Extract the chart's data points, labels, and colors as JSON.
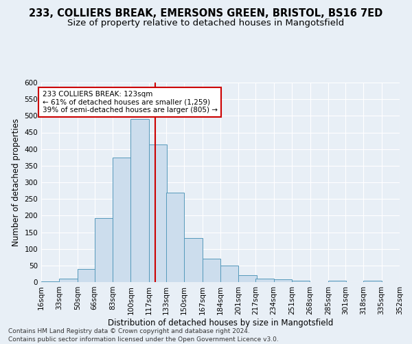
{
  "title1": "233, COLLIERS BREAK, EMERSONS GREEN, BRISTOL, BS16 7ED",
  "title2": "Size of property relative to detached houses in Mangotsfield",
  "xlabel": "Distribution of detached houses by size in Mangotsfield",
  "ylabel": "Number of detached properties",
  "footer1": "Contains HM Land Registry data © Crown copyright and database right 2024.",
  "footer2": "Contains public sector information licensed under the Open Government Licence v3.0.",
  "annotation_line1": "233 COLLIERS BREAK: 123sqm",
  "annotation_line2": "← 61% of detached houses are smaller (1,259)",
  "annotation_line3": "39% of semi-detached houses are larger (805) →",
  "bar_color": "#ccdded",
  "bar_edge_color": "#5599bb",
  "vline_color": "#cc0000",
  "vline_x": 123,
  "bins": [
    16,
    33,
    50,
    66,
    83,
    100,
    117,
    133,
    150,
    167,
    184,
    201,
    217,
    234,
    251,
    268,
    285,
    301,
    318,
    335,
    352
  ],
  "bin_labels": [
    "16sqm",
    "33sqm",
    "50sqm",
    "66sqm",
    "83sqm",
    "100sqm",
    "117sqm",
    "133sqm",
    "150sqm",
    "167sqm",
    "184sqm",
    "201sqm",
    "217sqm",
    "234sqm",
    "251sqm",
    "268sqm",
    "285sqm",
    "301sqm",
    "318sqm",
    "335sqm",
    "352sqm"
  ],
  "counts": [
    3,
    10,
    40,
    193,
    375,
    490,
    413,
    270,
    133,
    70,
    50,
    20,
    10,
    8,
    5,
    0,
    5,
    0,
    5,
    0,
    3
  ],
  "ylim": [
    0,
    600
  ],
  "yticks": [
    0,
    50,
    100,
    150,
    200,
    250,
    300,
    350,
    400,
    450,
    500,
    550,
    600
  ],
  "background_color": "#e8eff6",
  "plot_bg_color": "#e8eff6",
  "grid_color": "#ffffff",
  "annotation_box_facecolor": "#ffffff",
  "annotation_box_edgecolor": "#cc0000",
  "title_fontsize": 10.5,
  "subtitle_fontsize": 9.5,
  "axis_label_fontsize": 8.5,
  "tick_fontsize": 7.5,
  "footer_fontsize": 6.5
}
